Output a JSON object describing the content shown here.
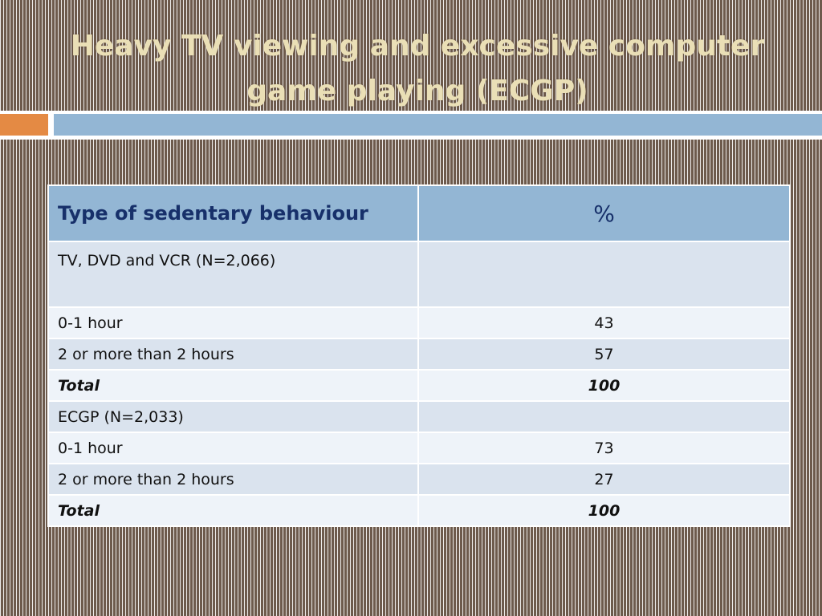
{
  "title": "Heavy TV viewing and excessive computer game playing (ECGP)",
  "table": {
    "headers": [
      "Type of sedentary behaviour",
      "%"
    ],
    "rows": [
      {
        "label": "TV, DVD and VCR (N=2,066)",
        "value": ""
      },
      {
        "label": "0-1 hour",
        "value": "43"
      },
      {
        "label": "2 or more than 2 hours",
        "value": "57"
      },
      {
        "label": "Total",
        "value": "100"
      },
      {
        "label": "ECGP (N=2,033)",
        "value": ""
      },
      {
        "label": "0-1 hour",
        "value": "73"
      },
      {
        "label": "2 or more than 2 hours",
        "value": "27"
      },
      {
        "label": "Total",
        "value": "100"
      }
    ]
  },
  "colors": {
    "title": "#eadfb6",
    "accent_orange": "#e48a44",
    "accent_blue": "#93b6d4",
    "header_text": "#17306a",
    "row_dark": "#dae3ee",
    "row_light": "#eef3f9"
  }
}
